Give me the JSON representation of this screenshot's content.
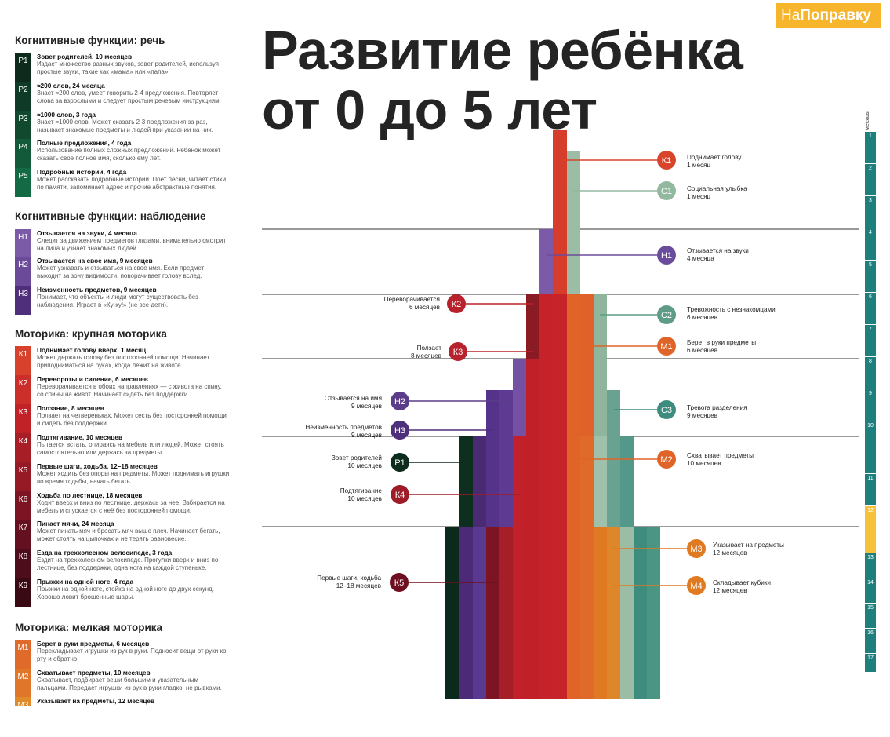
{
  "brand": {
    "part1": "На",
    "part2": "Поправку"
  },
  "title": {
    "line1": "Развитие ребёнка",
    "line2": "от 0 до 5 лет"
  },
  "scale": {
    "label": "месяцы",
    "months": [
      "1",
      "2",
      "3",
      "4",
      "5",
      "6",
      "7",
      "8",
      "9",
      "10",
      "11",
      "12",
      "13",
      "14",
      "15",
      "16",
      "17"
    ],
    "highlight": "12"
  },
  "colors": {
    "speech": "#0e5a3a",
    "observation": "#6b4a9a",
    "gross": "#c0202a",
    "fine": "#e0622a",
    "social": "#8fb9a0",
    "scale": "#1f7f7d",
    "scale_highlight": "#f6c23c"
  },
  "sections": [
    {
      "title": "Когнитивные функции: речь",
      "items": [
        {
          "code": "Р1",
          "title": "Зовет родителей, 10 месяцев",
          "desc": "Издает множество разных звуков, зовет родителей, используя простые звуки, такие как «мама» или «папа»."
        },
        {
          "code": "Р2",
          "title": "≈200 слов, 24 месяца",
          "desc": "Знает ≈200 слов, умеет говорить 2-4 предложения. Повторяет слова за взрослыми и следует простым речевым инструкциям."
        },
        {
          "code": "Р3",
          "title": "≈1000 слов, 3 года",
          "desc": "Знает ≈1000 слов. Может сказать 2-3 предложения за раз, называет знакомые предметы и людей при указании на них."
        },
        {
          "code": "Р4",
          "title": "Полные предложения, 4 года",
          "desc": "Использование полных сложных предложений. Ребенок может сказать свое полное имя, сколько ему лет."
        },
        {
          "code": "Р5",
          "title": "Подробные истории, 4 года",
          "desc": "Может рассказать подробные истории. Поет песни, читает стихи по памяти, запоминает адрес и прочие абстрактные понятия."
        }
      ]
    },
    {
      "title": "Когнитивные функции: наблюдение",
      "items": [
        {
          "code": "Н1",
          "title": "Отзывается на звуки, 4 месяца",
          "desc": "Следит за движением предметов глазами, внимательно смотрит на лица и узнает знакомых людей."
        },
        {
          "code": "Н2",
          "title": "Отзывается на свое имя, 9 месяцев",
          "desc": "Может узнавать и отзываться на свое имя. Если предмет выходит за зону видимости, поворачивает голову вслед."
        },
        {
          "code": "Н3",
          "title": "Неизменность предметов, 9 месяцев",
          "desc": "Понимает, что объекты и люди могут существовать без наблюдения. Играет в «Ку-ку!» (не все дети)."
        }
      ]
    },
    {
      "title": "Моторика: крупная моторика",
      "items": [
        {
          "code": "К1",
          "title": "Поднимает голову вверх, 1 месяц",
          "desc": "Может держать голову без посторонней помощи. Начинает приподниматься на руках, когда лежит на животе"
        },
        {
          "code": "К2",
          "title": "Перевороты и сидение, 6 месяцев",
          "desc": "Переворачивается в обоих направлениях — с живота на спину, со спины на живот. Начинает сидеть без поддержки."
        },
        {
          "code": "К3",
          "title": "Ползание, 8 месяцев",
          "desc": "Ползает на четвереньках. Может сесть без посторонней помощи и сидеть без поддержки."
        },
        {
          "code": "К4",
          "title": "Подтягивание, 10 месяцев",
          "desc": "Пытается встать, опираясь на мебель или людей. Может стоять самостоятельно или держась за предметы."
        },
        {
          "code": "К5",
          "title": "Первые шаги, ходьба, 12–18 месяцев",
          "desc": "Может ходить без опоры на предметы. Может поднимать игрушки во время ходьбы, начать бегать."
        },
        {
          "code": "К6",
          "title": "Ходьба по лестнице, 18 месяцев",
          "desc": "Ходит вверх и вниз по лестнице, держась за нее. Взбирается на мебель и спускается с неё без посторонней помощи."
        },
        {
          "code": "К7",
          "title": "Пинает мячи, 24 месяца",
          "desc": "Может пинать мяч и бросать мяч выше плеч. Начинает бегать, может стоять на цыпочках и не терять равновесие."
        },
        {
          "code": "К8",
          "title": "Езда на трехколесном велосипеде, 3 года",
          "desc": "Ездит на трехколесном велосипеде. Прогулки вверх и вниз по лестнице, без поддержки, одна нога на каждой ступеньке."
        },
        {
          "code": "К9",
          "title": "Прыжки на одной ноге, 4 года",
          "desc": "Прыжки на одной ноге, стойка на одной ноге до двух секунд. Хорошо ловит брошенные шары."
        }
      ]
    },
    {
      "title": "Моторика: мелкая моторика",
      "items": [
        {
          "code": "М1",
          "title": "Берет в руки предметы, 6 месяцев",
          "desc": "Перекладывает игрушки из рук в руки. Подносит вещи от руки ко рту и обратно."
        },
        {
          "code": "М2",
          "title": "Схватывает предметы, 10 месяцев",
          "desc": "Схватывает, подбирает вещи большим и указательным пальцами. Передает игрушки из рук в руки гладко, не рывками."
        },
        {
          "code": "М3",
          "title": "Указывает на предметы, 12 месяцев",
          "desc": ""
        }
      ]
    }
  ],
  "milestones": [
    {
      "code": "К1",
      "line1": "Поднимает голову",
      "line2": "1 месяц",
      "side": "right",
      "color": "#d8452b"
    },
    {
      "code": "С1",
      "line1": "Социальная улыбка",
      "line2": "1 месяц",
      "side": "right",
      "color": "#93b8a0"
    },
    {
      "code": "Н1",
      "line1": "Отзывается на звуки",
      "line2": "4 месяца",
      "side": "right",
      "color": "#6a4c9c"
    },
    {
      "code": "К2",
      "line1": "Переворачивается",
      "line2": "6 месяцев",
      "side": "left",
      "color": "#b8222c"
    },
    {
      "code": "С2",
      "line1": "Тревожность с незнакомцами",
      "line2": "6 месяцев",
      "side": "right",
      "color": "#5f9c88"
    },
    {
      "code": "К3",
      "line1": "Ползает",
      "line2": "8 месяцев",
      "side": "left",
      "color": "#b8222c"
    },
    {
      "code": "М1",
      "line1": "Берет в руки предметы",
      "line2": "6 месяцев",
      "side": "right",
      "color": "#e06428"
    },
    {
      "code": "Н2",
      "line1": "Отзывается на имя",
      "line2": "9 месяцев",
      "side": "left",
      "color": "#5b3c8a"
    },
    {
      "code": "С3",
      "line1": "Тревога разделения",
      "line2": "9 месяцев",
      "side": "right",
      "color": "#3e8c7e"
    },
    {
      "code": "Н3",
      "line1": "Неизменность предметов",
      "line2": "9 месяцев",
      "side": "left",
      "color": "#4e2f7a"
    },
    {
      "code": "Р1",
      "line1": "Зовет родителей",
      "line2": "10 месяцев",
      "side": "left",
      "color": "#0e2c1e"
    },
    {
      "code": "М2",
      "line1": "Схватывает предметы",
      "line2": "10 месяцев",
      "side": "right",
      "color": "#e06428"
    },
    {
      "code": "К4",
      "line1": "Подтягивание",
      "line2": "10 месяцев",
      "side": "left",
      "color": "#9e1c28"
    },
    {
      "code": "М3",
      "line1": "Указывает на предметы",
      "line2": "12 месяцев",
      "side": "right",
      "color": "#e07a22"
    },
    {
      "code": "К5",
      "line1": "Первые шаги, ходьба",
      "line2": "12–18 месяцев",
      "side": "left",
      "color": "#6e0e1e"
    },
    {
      "code": "М4",
      "line1": "Складывает кубики",
      "line2": "12 месяцев",
      "side": "right",
      "color": "#e07a22"
    }
  ]
}
